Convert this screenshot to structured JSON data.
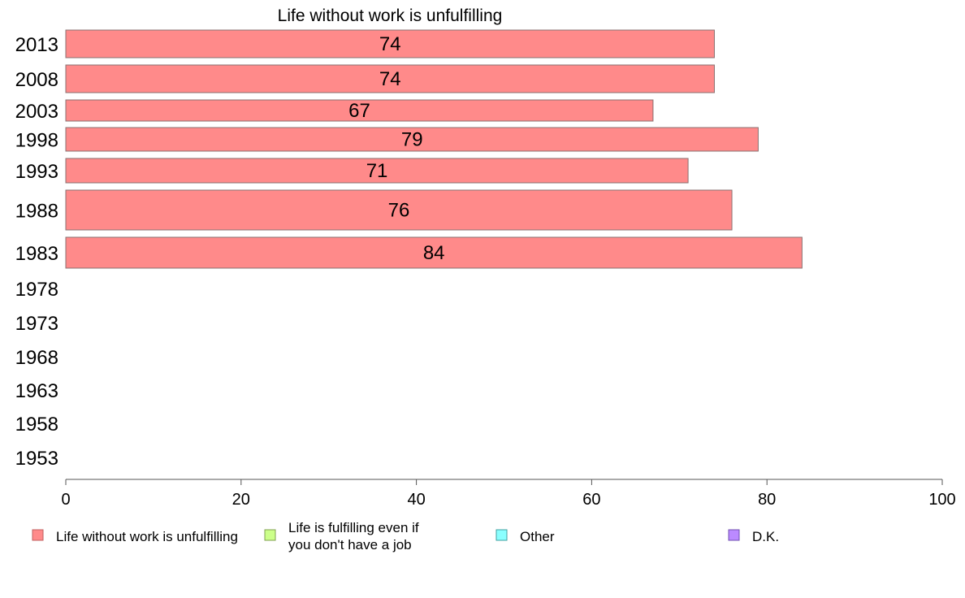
{
  "chart_data": {
    "type": "bar",
    "orientation": "horizontal",
    "title": "Life without work is unfulfilling",
    "xlabel": "",
    "ylabel": "",
    "xlim": [
      0,
      100
    ],
    "x_ticks": [
      "0",
      "20",
      "40",
      "60",
      "80",
      "100"
    ],
    "categories": [
      "2013",
      "2008",
      "2003",
      "1998",
      "1993",
      "1988",
      "1983",
      "1978",
      "1973",
      "1968",
      "1963",
      "1958",
      "1953"
    ],
    "series": [
      {
        "name": "Life without work is unfulfilling",
        "color": "#ff8a8a",
        "values": [
          74,
          74,
          67,
          79,
          71,
          76,
          84,
          null,
          null,
          null,
          null,
          null,
          null
        ],
        "labels": [
          "74",
          "74",
          "67",
          "79",
          "71",
          "76",
          "84",
          "",
          "",
          "",
          "",
          "",
          ""
        ]
      }
    ],
    "legend": {
      "placement": "bottom",
      "entries": [
        {
          "lines": [
            "Life without work is unfulfilling"
          ],
          "color": "#ff8a8a",
          "border": "#c06060"
        },
        {
          "lines": [
            "Life is fulfilling even if",
            "you don't have a job"
          ],
          "color": "#ccff8a",
          "border": "#80a050"
        },
        {
          "lines": [
            "Other"
          ],
          "color": "#8affff",
          "border": "#40a0a0"
        },
        {
          "lines": [
            "D.K."
          ],
          "color": "#bb8aff",
          "border": "#7050b0"
        }
      ]
    },
    "grid": false
  }
}
